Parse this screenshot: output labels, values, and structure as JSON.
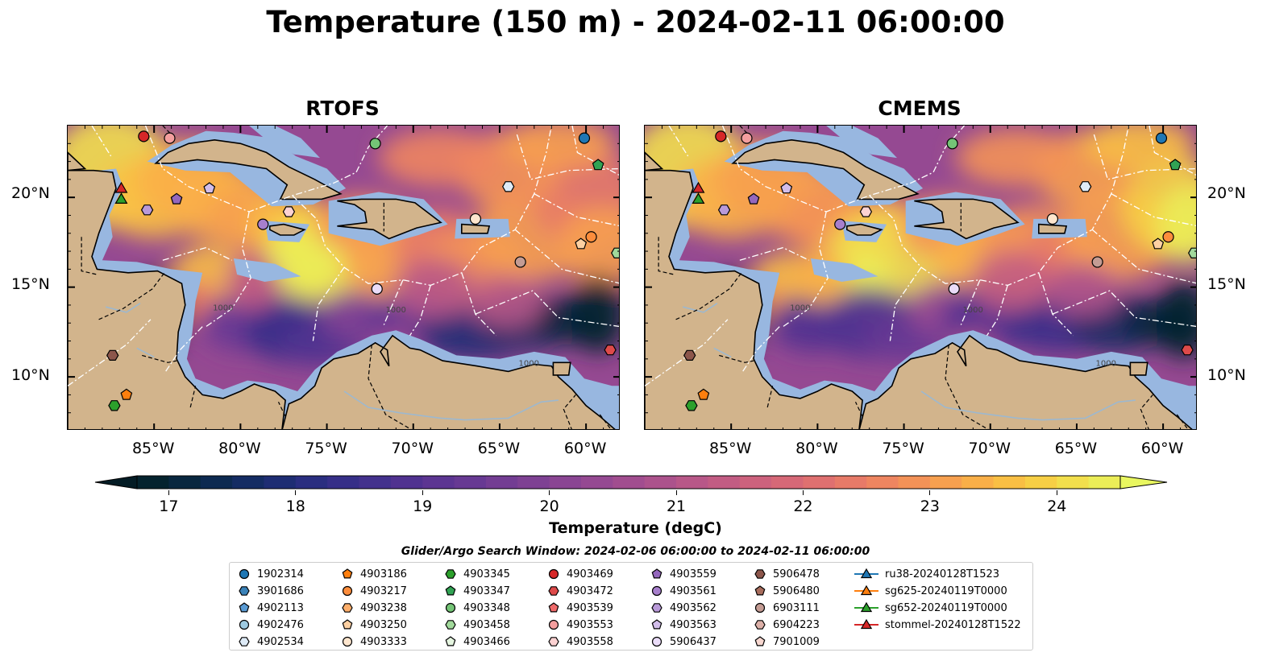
{
  "title": "Temperature (150 m) - 2024-02-11 06:00:00",
  "panels": [
    {
      "title": "RTOFS",
      "variant": "rtofs"
    },
    {
      "title": "CMEMS",
      "variant": "cmems"
    }
  ],
  "lat_ticks": [
    "20°N",
    "15°N",
    "10°N"
  ],
  "lon_ticks": [
    "85°W",
    "80°W",
    "75°W",
    "70°W",
    "65°W",
    "60°W"
  ],
  "contour_label": "1000",
  "colorbar": {
    "label": "Temperature (degC)",
    "ticks": [
      "17",
      "18",
      "19",
      "20",
      "21",
      "22",
      "23",
      "24"
    ],
    "tick_values": [
      17,
      18,
      19,
      20,
      21,
      22,
      23,
      24
    ],
    "min": 16.75,
    "max": 24.5,
    "extend": "both",
    "bin_edges": [
      16.75,
      17.0,
      17.25,
      17.5,
      17.75,
      18.0,
      18.25,
      18.5,
      18.75,
      19.0,
      19.25,
      19.5,
      19.75,
      20.0,
      20.25,
      20.5,
      20.75,
      21.0,
      21.25,
      21.5,
      21.75,
      22.0,
      22.25,
      22.5,
      22.75,
      23.0,
      23.25,
      23.5,
      23.75,
      24.0,
      24.25,
      24.5
    ],
    "colors": [
      "#04232e",
      "#08273f",
      "#0d2a51",
      "#142c63",
      "#1e2d73",
      "#2a2e80",
      "#362f88",
      "#43318d",
      "#503290",
      "#5c3592",
      "#673993",
      "#733d93",
      "#7e4193",
      "#8a4593",
      "#954992",
      "#a14d8f",
      "#ac528c",
      "#b85788",
      "#c25c83",
      "#cd627d",
      "#d66877",
      "#df7070",
      "#e77a68",
      "#ee8560",
      "#f39257",
      "#f7a04f",
      "#f9af48",
      "#f9bf44",
      "#f7cf45",
      "#f2df4c",
      "#ebed57"
    ],
    "extend_low_color": "#041c25",
    "extend_high_color": "#e9f760"
  },
  "chart_data": {
    "type": "heatmap",
    "title": "Temperature (150 m) - 2024-02-11 06:00:00",
    "subplots": [
      "RTOFS",
      "CMEMS"
    ],
    "variable": "Temperature (degC)",
    "depth": "150 m",
    "time": "2024-02-11 06:00:00",
    "xlim": [
      -90,
      -58
    ],
    "ylim": [
      7,
      24
    ],
    "x_ticks": [
      -85,
      -80,
      -75,
      -70,
      -65,
      -60
    ],
    "y_ticks": [
      10,
      15,
      20
    ],
    "color_range": [
      17,
      24.5
    ],
    "platforms": [
      {
        "id": "1902314",
        "lon": -60.1,
        "lat": 23.3
      },
      {
        "id": "4903186",
        "lon": -86.6,
        "lat": 9.0
      },
      {
        "id": "4903345",
        "lon": -87.3,
        "lat": 8.4
      },
      {
        "id": "4903347",
        "lon": -59.3,
        "lat": 21.8
      },
      {
        "id": "4903348",
        "lon": -72.2,
        "lat": 23.0
      },
      {
        "id": "4903458",
        "lon": -58.2,
        "lat": 16.9
      },
      {
        "id": "4903469",
        "lon": -85.6,
        "lat": 23.4
      },
      {
        "id": "4903472",
        "lon": -58.6,
        "lat": 11.5
      },
      {
        "id": "4903553",
        "lon": -84.1,
        "lat": 23.3
      },
      {
        "id": "4903558",
        "lon": -77.2,
        "lat": 19.2
      },
      {
        "id": "4903559",
        "lon": -83.7,
        "lat": 19.9
      },
      {
        "id": "4903561",
        "lon": -78.7,
        "lat": 18.5
      },
      {
        "id": "4903562",
        "lon": -85.4,
        "lat": 19.3
      },
      {
        "id": "4903563",
        "lon": -81.8,
        "lat": 20.5
      },
      {
        "id": "5906437",
        "lon": -72.1,
        "lat": 14.9
      },
      {
        "id": "4902534",
        "lon": -64.5,
        "lat": 20.6
      },
      {
        "id": "4903217",
        "lon": -59.7,
        "lat": 17.8
      },
      {
        "id": "4903250",
        "lon": -60.3,
        "lat": 17.4
      },
      {
        "id": "4903333",
        "lon": -66.4,
        "lat": 18.8
      },
      {
        "id": "5906478",
        "lon": -87.4,
        "lat": 11.2
      },
      {
        "id": "6903111",
        "lon": -63.8,
        "lat": 16.4
      },
      {
        "id": "sg652-20240119T0000",
        "lon": -86.9,
        "lat": 19.9
      },
      {
        "id": "stommel-20240128T1522",
        "lon": -86.9,
        "lat": 20.5
      }
    ]
  },
  "legend": {
    "title": "Glider/Argo Search Window: 2024-02-06 06:00:00 to 2024-02-11 06:00:00",
    "columns": [
      [
        {
          "label": "1902314",
          "marker": "circle",
          "color": "#1f77b4"
        },
        {
          "label": "3901686",
          "marker": "hexagon",
          "color": "#3a82b8"
        },
        {
          "label": "4902113",
          "marker": "pentagon",
          "color": "#5a9bd4"
        },
        {
          "label": "4902476",
          "marker": "circle",
          "color": "#9ecae1"
        },
        {
          "label": "4902534",
          "marker": "hexagon",
          "color": "#deebf7"
        }
      ],
      [
        {
          "label": "4903186",
          "marker": "pentagon",
          "color": "#ff7f0e"
        },
        {
          "label": "4903217",
          "marker": "circle",
          "color": "#fd8d3c"
        },
        {
          "label": "4903238",
          "marker": "hexagon",
          "color": "#fdae6b"
        },
        {
          "label": "4903250",
          "marker": "pentagon",
          "color": "#fdd0a2"
        },
        {
          "label": "4903333",
          "marker": "circle",
          "color": "#fee6ce"
        }
      ],
      [
        {
          "label": "4903345",
          "marker": "hexagon",
          "color": "#2ca02c"
        },
        {
          "label": "4903347",
          "marker": "pentagon",
          "color": "#31a354"
        },
        {
          "label": "4903348",
          "marker": "circle",
          "color": "#74c476"
        },
        {
          "label": "4903458",
          "marker": "hexagon",
          "color": "#a1d99b"
        },
        {
          "label": "4903466",
          "marker": "pentagon",
          "color": "#e5f5e0"
        }
      ],
      [
        {
          "label": "4903469",
          "marker": "circle",
          "color": "#d62728"
        },
        {
          "label": "4903472",
          "marker": "hexagon",
          "color": "#de4a4a"
        },
        {
          "label": "4903539",
          "marker": "pentagon",
          "color": "#ef6a6a"
        },
        {
          "label": "4903553",
          "marker": "circle",
          "color": "#f49e9e"
        },
        {
          "label": "4903558",
          "marker": "hexagon",
          "color": "#fcd2d2"
        }
      ],
      [
        {
          "label": "4903559",
          "marker": "pentagon",
          "color": "#9467bd"
        },
        {
          "label": "4903561",
          "marker": "circle",
          "color": "#a77fcc"
        },
        {
          "label": "4903562",
          "marker": "hexagon",
          "color": "#b99ad9"
        },
        {
          "label": "4903563",
          "marker": "pentagon",
          "color": "#d2bdea"
        },
        {
          "label": "5906437",
          "marker": "circle",
          "color": "#eadcf8"
        }
      ],
      [
        {
          "label": "5906478",
          "marker": "hexagon",
          "color": "#8c564b"
        },
        {
          "label": "5906480",
          "marker": "pentagon",
          "color": "#a86d5d"
        },
        {
          "label": "6903111",
          "marker": "circle",
          "color": "#c49c94"
        },
        {
          "label": "6904223",
          "marker": "hexagon",
          "color": "#dcb0a8"
        },
        {
          "label": "7901009",
          "marker": "pentagon",
          "color": "#f7d7d0"
        }
      ],
      [
        {
          "label": "ru38-20240128T1523",
          "marker": "triangle-line",
          "color": "#1f77b4"
        },
        {
          "label": "sg625-20240119T0000",
          "marker": "triangle-line",
          "color": "#ff7f0e"
        },
        {
          "label": "sg652-20240119T0000",
          "marker": "triangle-line",
          "color": "#2ca02c"
        },
        {
          "label": "stommel-20240128T1522",
          "marker": "triangle-line",
          "color": "#d62728"
        }
      ]
    ]
  },
  "colors": {
    "land": "#d2b48c",
    "shelf": "#98b7e0",
    "coast": "#000000",
    "eez": "#ffffff"
  }
}
